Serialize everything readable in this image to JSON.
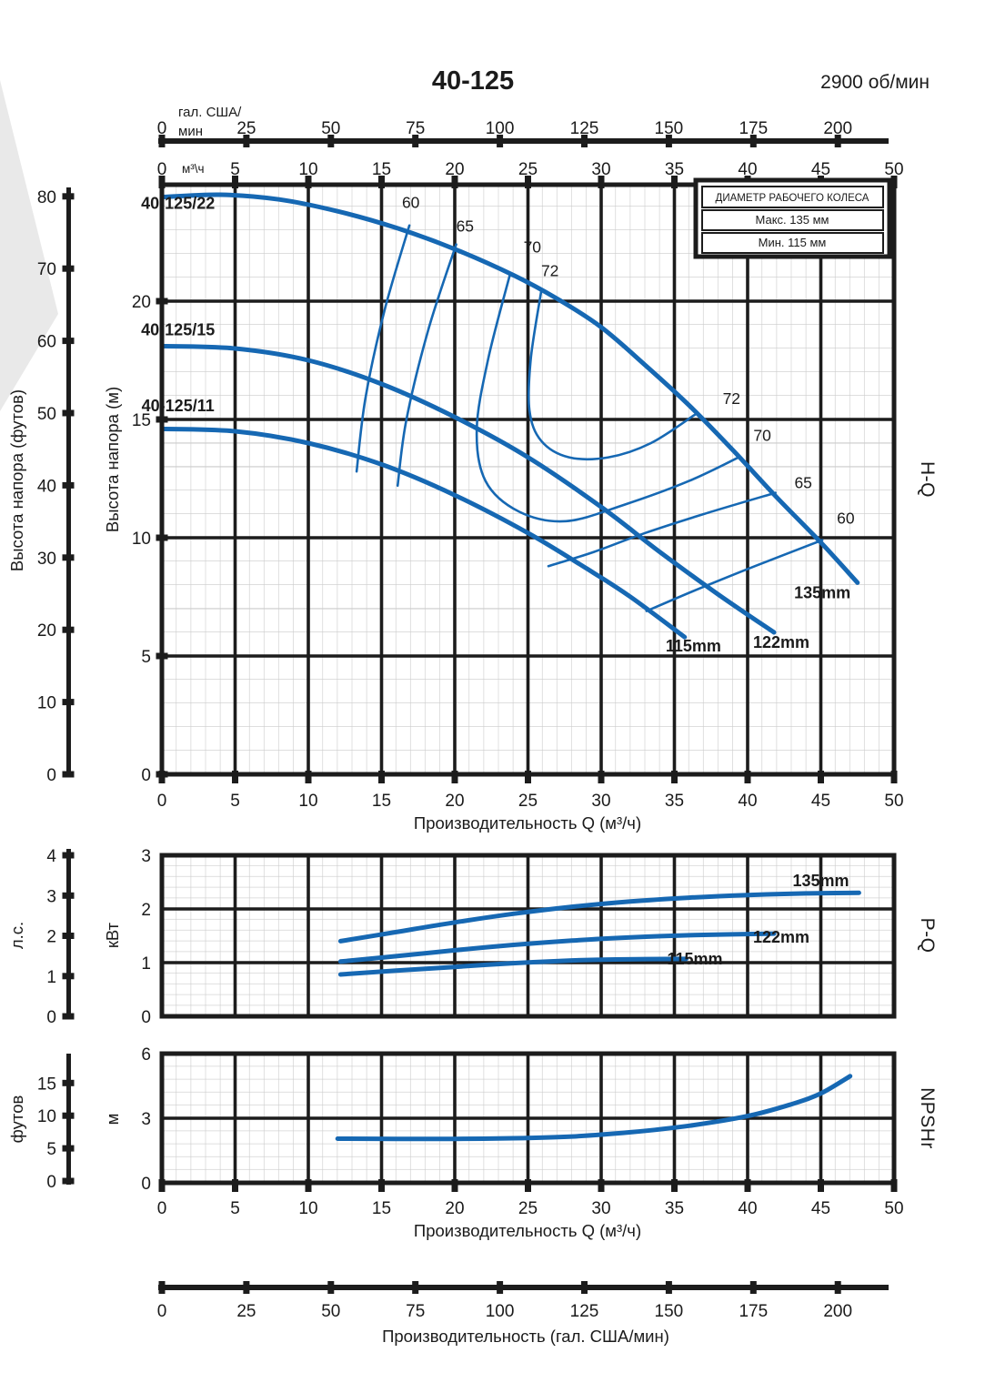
{
  "header": {
    "title": "40-125",
    "rpm": "2900 об/мин"
  },
  "legend": {
    "header": "ДИАМЕТР РАБОЧЕГО КОЛЕСА",
    "max": "Макс. 135 мм",
    "min": "Мин. 115 мм"
  },
  "axis_titles": {
    "flow_m3h_main": "Производительность Q (м³/ч)",
    "flow_m3h_npsh": "Производительность Q (м³/ч)",
    "flow_gal_bottom": "Производительность (гал. США/мин)",
    "gal_line1": "гал. США/",
    "gal_line2": "мин",
    "m3h_unit": "м³\\ч",
    "head_ft": "Высота напора (футов)",
    "head_m": "Высота напора (м)",
    "power_hp": "л.с.",
    "power_kw": "кВт",
    "npsh_ft": "футов",
    "npsh_m": "м",
    "right_hq": "H-Q",
    "right_pq": "P-Q",
    "right_npsh": "NPSHr"
  },
  "colors": {
    "curve_blue": "#1668b3",
    "grid_major": "#1c1c1c",
    "grid_minor": "#cbcbcb"
  },
  "chart_data": [
    {
      "name": "H-Q curve",
      "type": "line",
      "xlabel": "Производительность Q (м³/ч)",
      "ylabel": "Высота напора (м)",
      "xlim": [
        0,
        50
      ],
      "ylim": [
        0,
        24.9
      ],
      "x_ticks": [
        0,
        5,
        10,
        15,
        20,
        25,
        30,
        35,
        40,
        45,
        50
      ],
      "y_ticks": [
        0,
        5,
        10,
        15,
        20
      ],
      "ft_ticks": [
        0,
        10,
        20,
        30,
        40,
        50,
        60,
        70,
        80
      ],
      "gal_ticks": [
        0,
        25,
        50,
        75,
        100,
        125,
        150,
        175,
        200
      ],
      "x_major": [
        5,
        10,
        15,
        20,
        25,
        30,
        35,
        40,
        45
      ],
      "y_major": [
        5,
        10,
        15,
        20
      ],
      "series": [
        {
          "name": "40-125/22 (135mm)",
          "points": [
            [
              0,
              24.4
            ],
            [
              4,
              24.5
            ],
            [
              8,
              24.3
            ],
            [
              12,
              23.8
            ],
            [
              16,
              23.1
            ],
            [
              20,
              22.2
            ],
            [
              24,
              21.1
            ],
            [
              27,
              20.1
            ],
            [
              30,
              18.9
            ],
            [
              33,
              17.3
            ],
            [
              36,
              15.6
            ],
            [
              39,
              13.7
            ],
            [
              42,
              11.7
            ],
            [
              45,
              9.8
            ],
            [
              47.5,
              8.1
            ]
          ]
        },
        {
          "name": "40-125/15 (122mm)",
          "points": [
            [
              0,
              18.1
            ],
            [
              5,
              18.0
            ],
            [
              10,
              17.5
            ],
            [
              15,
              16.5
            ],
            [
              20,
              15.1
            ],
            [
              25,
              13.4
            ],
            [
              30,
              11.3
            ],
            [
              34,
              9.4
            ],
            [
              38,
              7.6
            ],
            [
              41.8,
              6.0
            ]
          ]
        },
        {
          "name": "40-125/11 (115mm)",
          "points": [
            [
              0,
              14.6
            ],
            [
              5,
              14.5
            ],
            [
              10,
              14.0
            ],
            [
              15,
              13.1
            ],
            [
              20,
              11.8
            ],
            [
              25,
              10.2
            ],
            [
              29,
              8.7
            ],
            [
              32,
              7.5
            ],
            [
              35.7,
              5.8
            ]
          ]
        }
      ],
      "efficiency_lines": [
        {
          "name": "eff-60-left",
          "points": [
            [
              16.9,
              23.2
            ],
            [
              15.2,
              19.6
            ],
            [
              13.9,
              15.9
            ],
            [
              13.3,
              12.8
            ]
          ]
        },
        {
          "name": "eff-65-left",
          "points": [
            [
              20.1,
              22.4
            ],
            [
              18.2,
              18.8
            ],
            [
              16.7,
              15.0
            ],
            [
              16.1,
              12.2
            ]
          ]
        },
        {
          "name": "eff-70-loop",
          "points": [
            [
              23.8,
              21.2
            ],
            [
              22.3,
              17.6
            ],
            [
              21.5,
              14.6
            ],
            [
              22.1,
              12.4
            ],
            [
              24.4,
              11.1
            ],
            [
              27.6,
              10.7
            ],
            [
              31.6,
              11.4
            ],
            [
              36.0,
              12.4
            ],
            [
              39.4,
              13.4
            ]
          ]
        },
        {
          "name": "eff-72-loop",
          "points": [
            [
              25.9,
              20.4
            ],
            [
              25.2,
              17.6
            ],
            [
              25.1,
              15.4
            ],
            [
              25.9,
              14.1
            ],
            [
              27.8,
              13.4
            ],
            [
              30.5,
              13.4
            ],
            [
              33.4,
              14.0
            ],
            [
              36.4,
              15.2
            ]
          ]
        },
        {
          "name": "eff-65-right",
          "points": [
            [
              26.4,
              8.8
            ],
            [
              29.5,
              9.4
            ],
            [
              33.0,
              10.2
            ],
            [
              37.0,
              11.0
            ],
            [
              41.9,
              11.9
            ]
          ]
        },
        {
          "name": "eff-60-right",
          "points": [
            [
              33.1,
              6.9
            ],
            [
              36.5,
              7.8
            ],
            [
              40.5,
              8.8
            ],
            [
              45.1,
              9.9
            ]
          ]
        }
      ],
      "model_labels": [
        {
          "x": 1.1,
          "y": 23.9,
          "text": "40-125/22",
          "a": "start"
        },
        {
          "x": 1.1,
          "y": 18.55,
          "text": "40-125/15",
          "a": "start"
        },
        {
          "x": 1.1,
          "y": 15.35,
          "text": "40-125/11",
          "a": "start"
        }
      ],
      "eff_labels": [
        {
          "x": 17.0,
          "y": 23.95,
          "text": "60"
        },
        {
          "x": 20.7,
          "y": 22.95,
          "text": "65"
        },
        {
          "x": 25.3,
          "y": 22.05,
          "text": "70"
        },
        {
          "x": 26.5,
          "y": 21.05,
          "text": "72"
        },
        {
          "x": 38.9,
          "y": 15.65,
          "text": "72"
        },
        {
          "x": 41.0,
          "y": 14.1,
          "text": "70"
        },
        {
          "x": 43.8,
          "y": 12.1,
          "text": "65"
        },
        {
          "x": 46.7,
          "y": 10.6,
          "text": "60"
        }
      ],
      "size_labels": [
        {
          "x": 45.1,
          "y": 7.45,
          "text": "135mm",
          "a": "start"
        },
        {
          "x": 42.3,
          "y": 5.35,
          "text": "122mm",
          "a": "start"
        },
        {
          "x": 36.3,
          "y": 5.2,
          "text": "115mm",
          "a": "start"
        }
      ]
    },
    {
      "name": "P-Q curve",
      "type": "line",
      "xlabel": "Производительность Q (м³/ч)",
      "ylabel": "кВт",
      "xlim": [
        0,
        50
      ],
      "ylim": [
        0,
        3
      ],
      "y_ticks": [
        0,
        1,
        2,
        3
      ],
      "hp_ticks": [
        0,
        1,
        2,
        3,
        4
      ],
      "x_major": [
        5,
        10,
        15,
        20,
        25,
        30,
        35,
        40,
        45
      ],
      "y_major": [
        1,
        2
      ],
      "series": [
        {
          "name": "135mm",
          "points": [
            [
              12.2,
              1.4
            ],
            [
              16,
              1.57
            ],
            [
              20,
              1.75
            ],
            [
              24,
              1.91
            ],
            [
              28,
              2.04
            ],
            [
              32,
              2.14
            ],
            [
              36,
              2.21
            ],
            [
              40,
              2.26
            ],
            [
              44,
              2.29
            ],
            [
              47.6,
              2.3
            ]
          ]
        },
        {
          "name": "122mm",
          "points": [
            [
              12.2,
              1.02
            ],
            [
              16,
              1.12
            ],
            [
              20,
              1.23
            ],
            [
              24,
              1.33
            ],
            [
              28,
              1.41
            ],
            [
              32,
              1.47
            ],
            [
              36,
              1.51
            ],
            [
              41.8,
              1.54
            ]
          ]
        },
        {
          "name": "115mm",
          "points": [
            [
              12.2,
              0.78
            ],
            [
              16,
              0.85
            ],
            [
              20,
              0.92
            ],
            [
              24,
              0.99
            ],
            [
              28,
              1.04
            ],
            [
              31,
              1.06
            ],
            [
              35.8,
              1.07
            ]
          ]
        }
      ],
      "size_labels": [
        {
          "x": 45.0,
          "y": 2.42,
          "text": "135mm",
          "a": "start"
        },
        {
          "x": 42.3,
          "y": 1.37,
          "text": "122mm",
          "a": "start"
        },
        {
          "x": 36.4,
          "y": 0.97,
          "text": "115mm",
          "a": "start"
        }
      ]
    },
    {
      "name": "NPSHr curve",
      "type": "line",
      "xlabel": "Производительность Q (м³/ч)",
      "ylabel": "м",
      "xlim": [
        0,
        50
      ],
      "ylim": [
        0,
        6
      ],
      "x_ticks": [
        0,
        5,
        10,
        15,
        20,
        25,
        30,
        35,
        40,
        45,
        50
      ],
      "y_ticks": [
        0,
        3,
        6
      ],
      "ft_ticks": [
        0,
        5,
        10,
        15
      ],
      "gal_ticks": [
        0,
        25,
        50,
        75,
        100,
        125,
        150,
        175,
        200
      ],
      "x_major": [
        5,
        10,
        15,
        20,
        25,
        30,
        35,
        40,
        45
      ],
      "y_major": [
        3
      ],
      "series": [
        {
          "name": "NPSHr",
          "points": [
            [
              12,
              2.05
            ],
            [
              16,
              2.04
            ],
            [
              20,
              2.04
            ],
            [
              24,
              2.07
            ],
            [
              28,
              2.15
            ],
            [
              32,
              2.35
            ],
            [
              36,
              2.65
            ],
            [
              40,
              3.1
            ],
            [
              43,
              3.65
            ],
            [
              45,
              4.15
            ],
            [
              47,
              4.95
            ]
          ]
        }
      ]
    }
  ]
}
